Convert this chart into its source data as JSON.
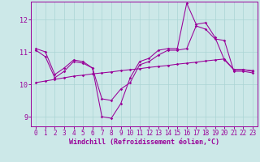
{
  "xlabel": "Windchill (Refroidissement éolien,°C)",
  "bg_color": "#cce8e8",
  "grid_color": "#aad4d4",
  "line_color": "#990099",
  "xlim": [
    -0.5,
    23.5
  ],
  "ylim": [
    8.7,
    12.55
  ],
  "yticks": [
    9,
    10,
    11,
    12
  ],
  "xticks": [
    0,
    1,
    2,
    3,
    4,
    5,
    6,
    7,
    8,
    9,
    10,
    11,
    12,
    13,
    14,
    15,
    16,
    17,
    18,
    19,
    20,
    21,
    22,
    23
  ],
  "series1_x": [
    0,
    1,
    2,
    3,
    4,
    5,
    6,
    7,
    8,
    9,
    10,
    11,
    12,
    13,
    14,
    15,
    16,
    17,
    18,
    19,
    20,
    21,
    22,
    23
  ],
  "series1_y": [
    11.1,
    11.0,
    10.3,
    10.5,
    10.75,
    10.7,
    10.5,
    9.0,
    8.95,
    9.4,
    10.2,
    10.7,
    10.8,
    11.05,
    11.1,
    11.1,
    12.5,
    11.85,
    11.9,
    11.45,
    10.75,
    10.45,
    10.45,
    10.4
  ],
  "series2_x": [
    0,
    1,
    2,
    3,
    4,
    5,
    6,
    7,
    8,
    9,
    10,
    11,
    12,
    13,
    14,
    15,
    16,
    17,
    18,
    19,
    20,
    21,
    22,
    23
  ],
  "series2_y": [
    11.05,
    10.85,
    10.2,
    10.4,
    10.7,
    10.65,
    10.5,
    9.55,
    9.5,
    9.85,
    10.05,
    10.6,
    10.7,
    10.9,
    11.05,
    11.05,
    11.1,
    11.8,
    11.7,
    11.4,
    11.35,
    10.4,
    10.4,
    10.35
  ],
  "series3_x": [
    0,
    1,
    2,
    3,
    4,
    5,
    6,
    7,
    8,
    9,
    10,
    11,
    12,
    13,
    14,
    15,
    16,
    17,
    18,
    19,
    20,
    21,
    22,
    23
  ],
  "series3_y": [
    10.05,
    10.1,
    10.15,
    10.2,
    10.25,
    10.28,
    10.32,
    10.35,
    10.38,
    10.42,
    10.45,
    10.48,
    10.52,
    10.55,
    10.58,
    10.62,
    10.65,
    10.68,
    10.72,
    10.75,
    10.78,
    10.45,
    10.45,
    10.42
  ],
  "tick_fontsize": 5.5,
  "label_fontsize": 6.0
}
